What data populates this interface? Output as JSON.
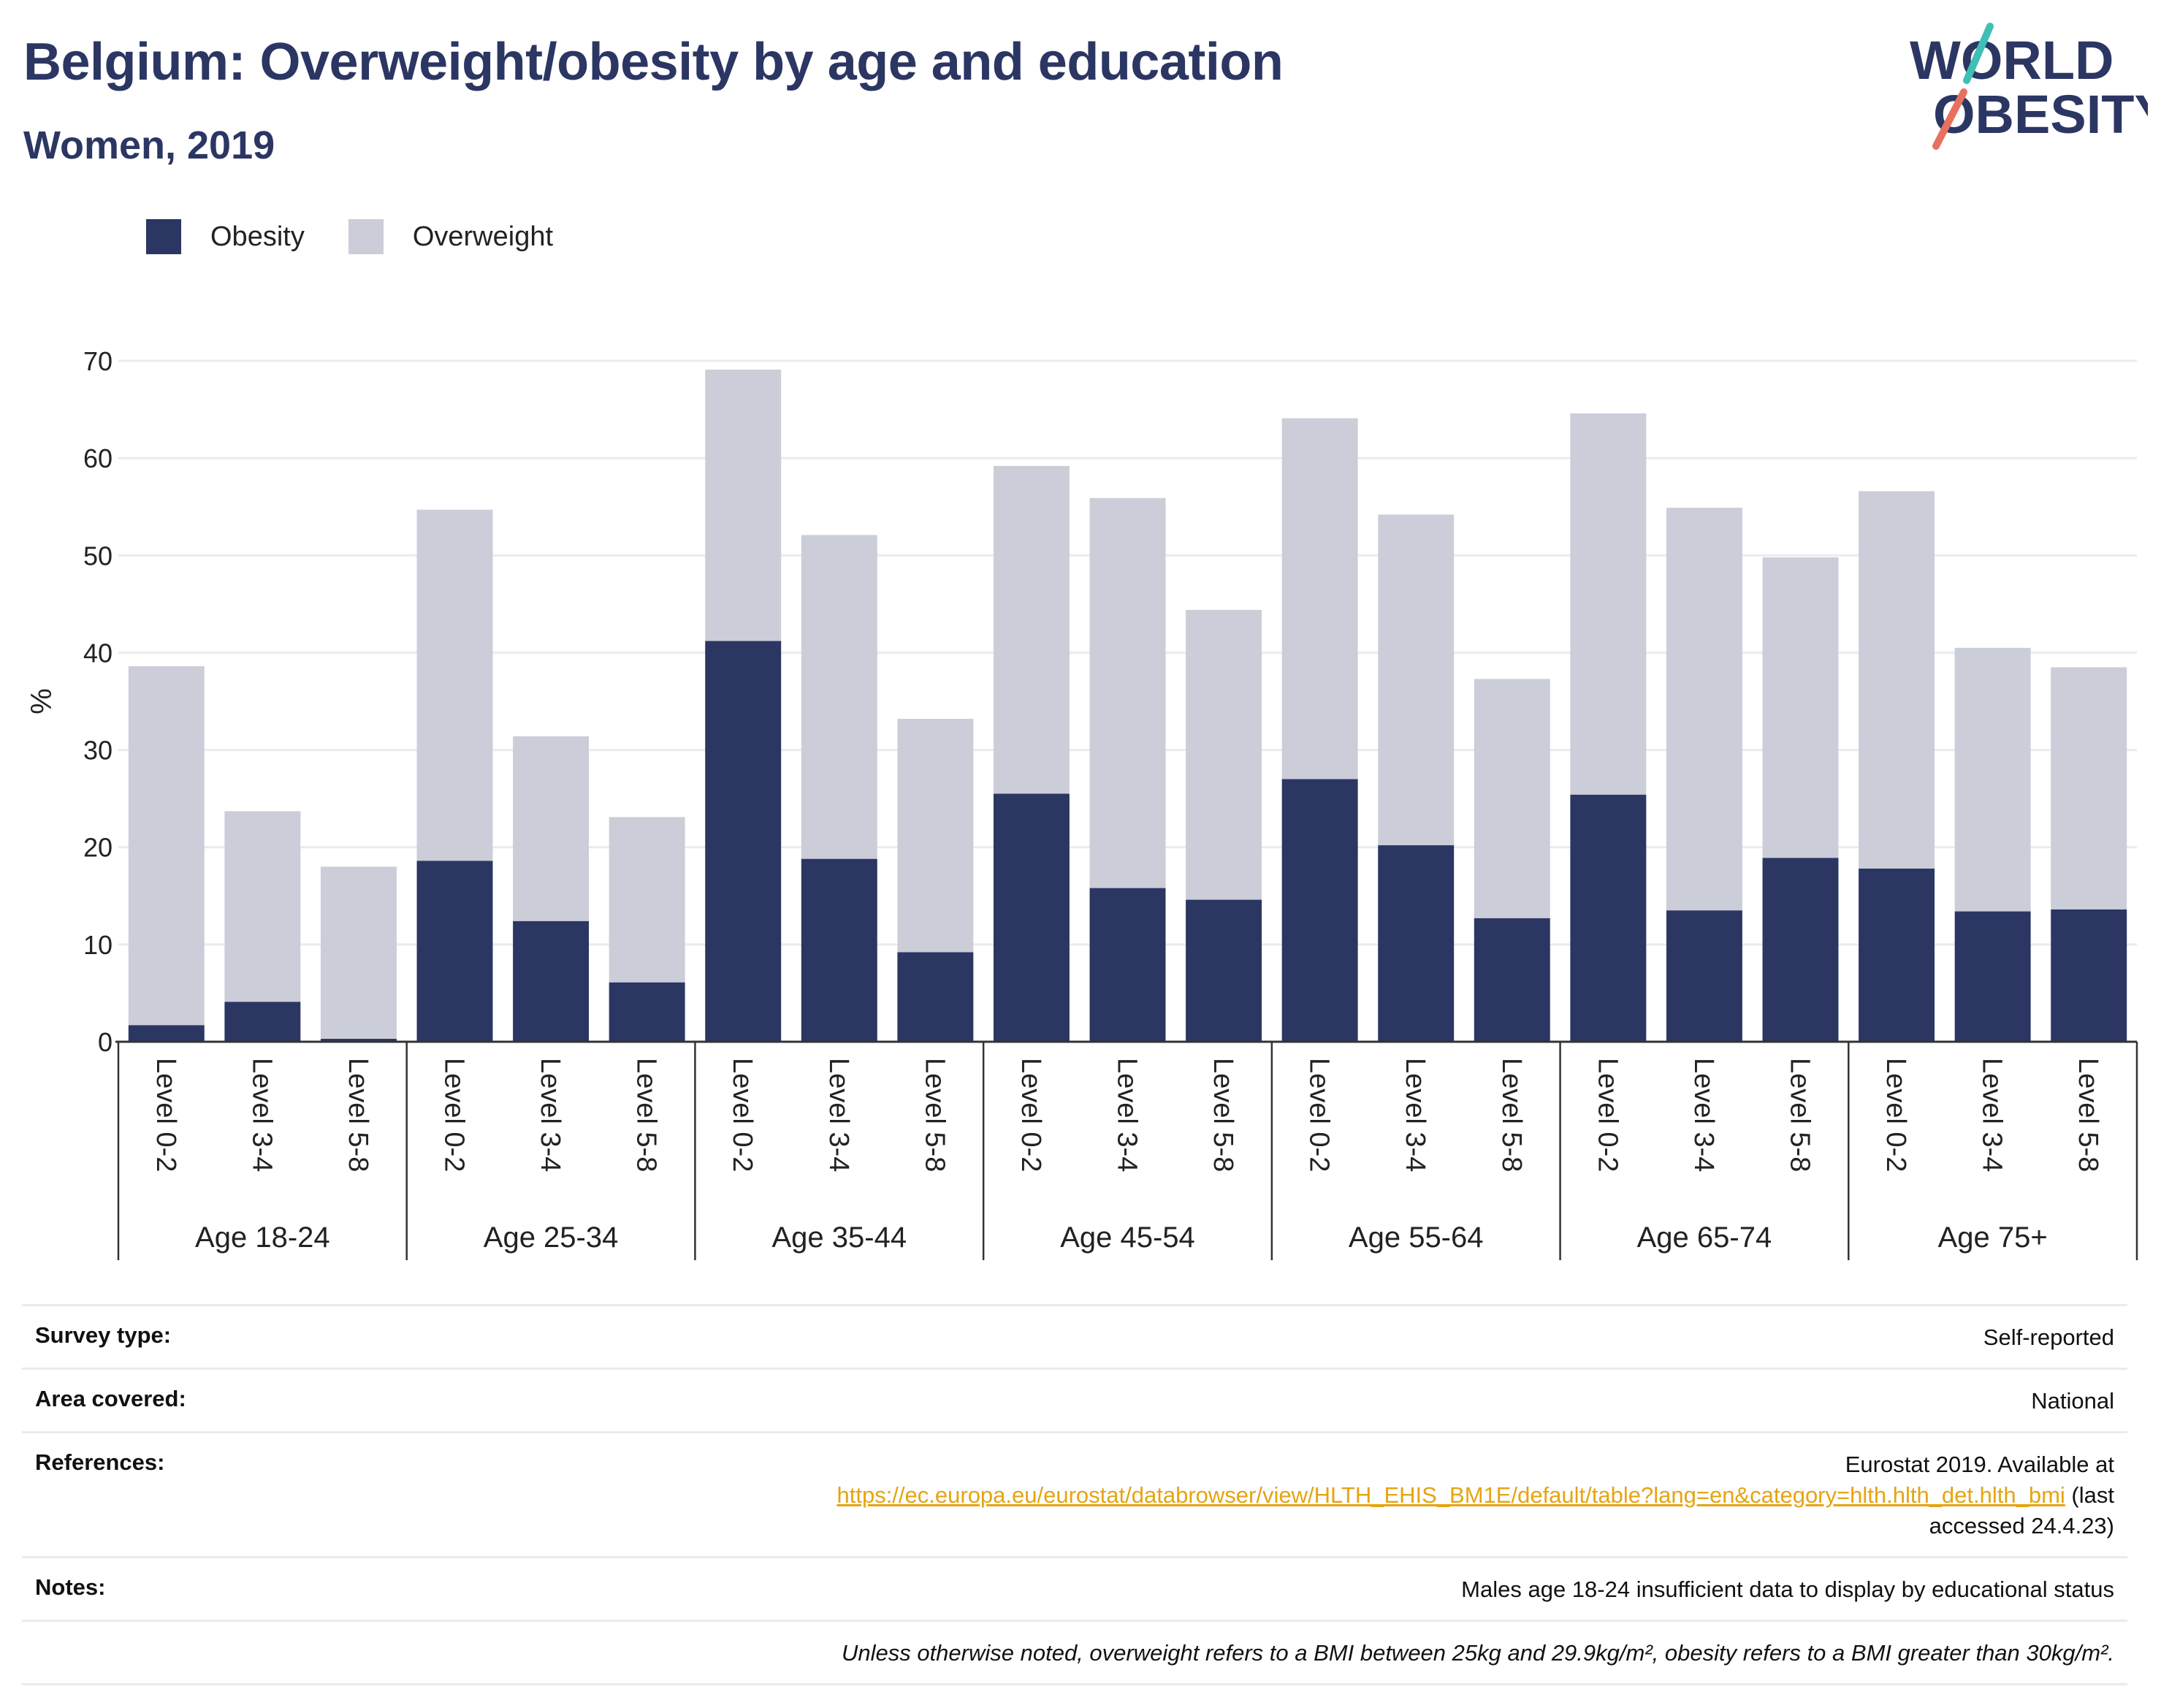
{
  "title": "Belgium: Overweight/obesity by age and education",
  "subtitle": "Women, 2019",
  "logo": {
    "line1": "WORLD",
    "line2": "OBESITY"
  },
  "colors": {
    "title": "#2b3663",
    "obesity": "#2b3663",
    "overweight": "#cbcdd9",
    "link": "#e6a410",
    "logo_teal": "#3fbfb5",
    "logo_coral": "#e8705f"
  },
  "chart_data": {
    "type": "bar",
    "stacked": true,
    "ylabel": "%",
    "ylim": [
      0,
      70
    ],
    "yticks": [
      0,
      10,
      20,
      30,
      40,
      50,
      60,
      70
    ],
    "grid": true,
    "legend_position": "top-left",
    "groups": [
      {
        "label": "Age 18-24",
        "categories": [
          "Level 0-2",
          "Level 3-4",
          "Level 5-8"
        ]
      },
      {
        "label": "Age 25-34",
        "categories": [
          "Level 0-2",
          "Level 3-4",
          "Level 5-8"
        ]
      },
      {
        "label": "Age 35-44",
        "categories": [
          "Level 0-2",
          "Level 3-4",
          "Level 5-8"
        ]
      },
      {
        "label": "Age 45-54",
        "categories": [
          "Level 0-2",
          "Level 3-4",
          "Level 5-8"
        ]
      },
      {
        "label": "Age 55-64",
        "categories": [
          "Level 0-2",
          "Level 3-4",
          "Level 5-8"
        ]
      },
      {
        "label": "Age 65-74",
        "categories": [
          "Level 0-2",
          "Level 3-4",
          "Level 5-8"
        ]
      },
      {
        "label": "Age 75+",
        "categories": [
          "Level 0-2",
          "Level 3-4",
          "Level 5-8"
        ]
      }
    ],
    "series": [
      {
        "name": "Obesity",
        "values": [
          1.7,
          4.1,
          0.3,
          18.6,
          12.4,
          6.1,
          41.2,
          18.8,
          9.2,
          25.5,
          15.8,
          14.6,
          27.0,
          20.2,
          12.7,
          25.4,
          13.5,
          18.9,
          17.8,
          13.4,
          13.6
        ]
      },
      {
        "name": "Overweight",
        "values": [
          36.9,
          19.6,
          17.7,
          36.1,
          19.0,
          17.0,
          27.9,
          33.3,
          24.0,
          33.7,
          40.1,
          29.8,
          37.1,
          34.0,
          24.6,
          39.2,
          41.4,
          30.9,
          38.8,
          27.1,
          24.9
        ]
      }
    ]
  },
  "info": [
    {
      "label": "Survey type:",
      "value": "Self-reported"
    },
    {
      "label": "Area covered:",
      "value": "National"
    },
    {
      "label": "References:",
      "value_line1": "Eurostat 2019. Available at",
      "link": "https://ec.europa.eu/eurostat/databrowser/view/HLTH_EHIS_BM1E/default/table?lang=en&category=hlth.hlth_det.hlth_bmi",
      "value_after_link": " (last",
      "value_line3": "accessed 24.4.23)"
    },
    {
      "label": "Notes:",
      "value": "Males age 18-24 insufficient data to display by educational status"
    },
    {
      "label": "",
      "value": "Unless otherwise noted, overweight refers to a BMI between 25kg and 29.9kg/m², obesity refers to a BMI greater than 30kg/m²."
    }
  ]
}
